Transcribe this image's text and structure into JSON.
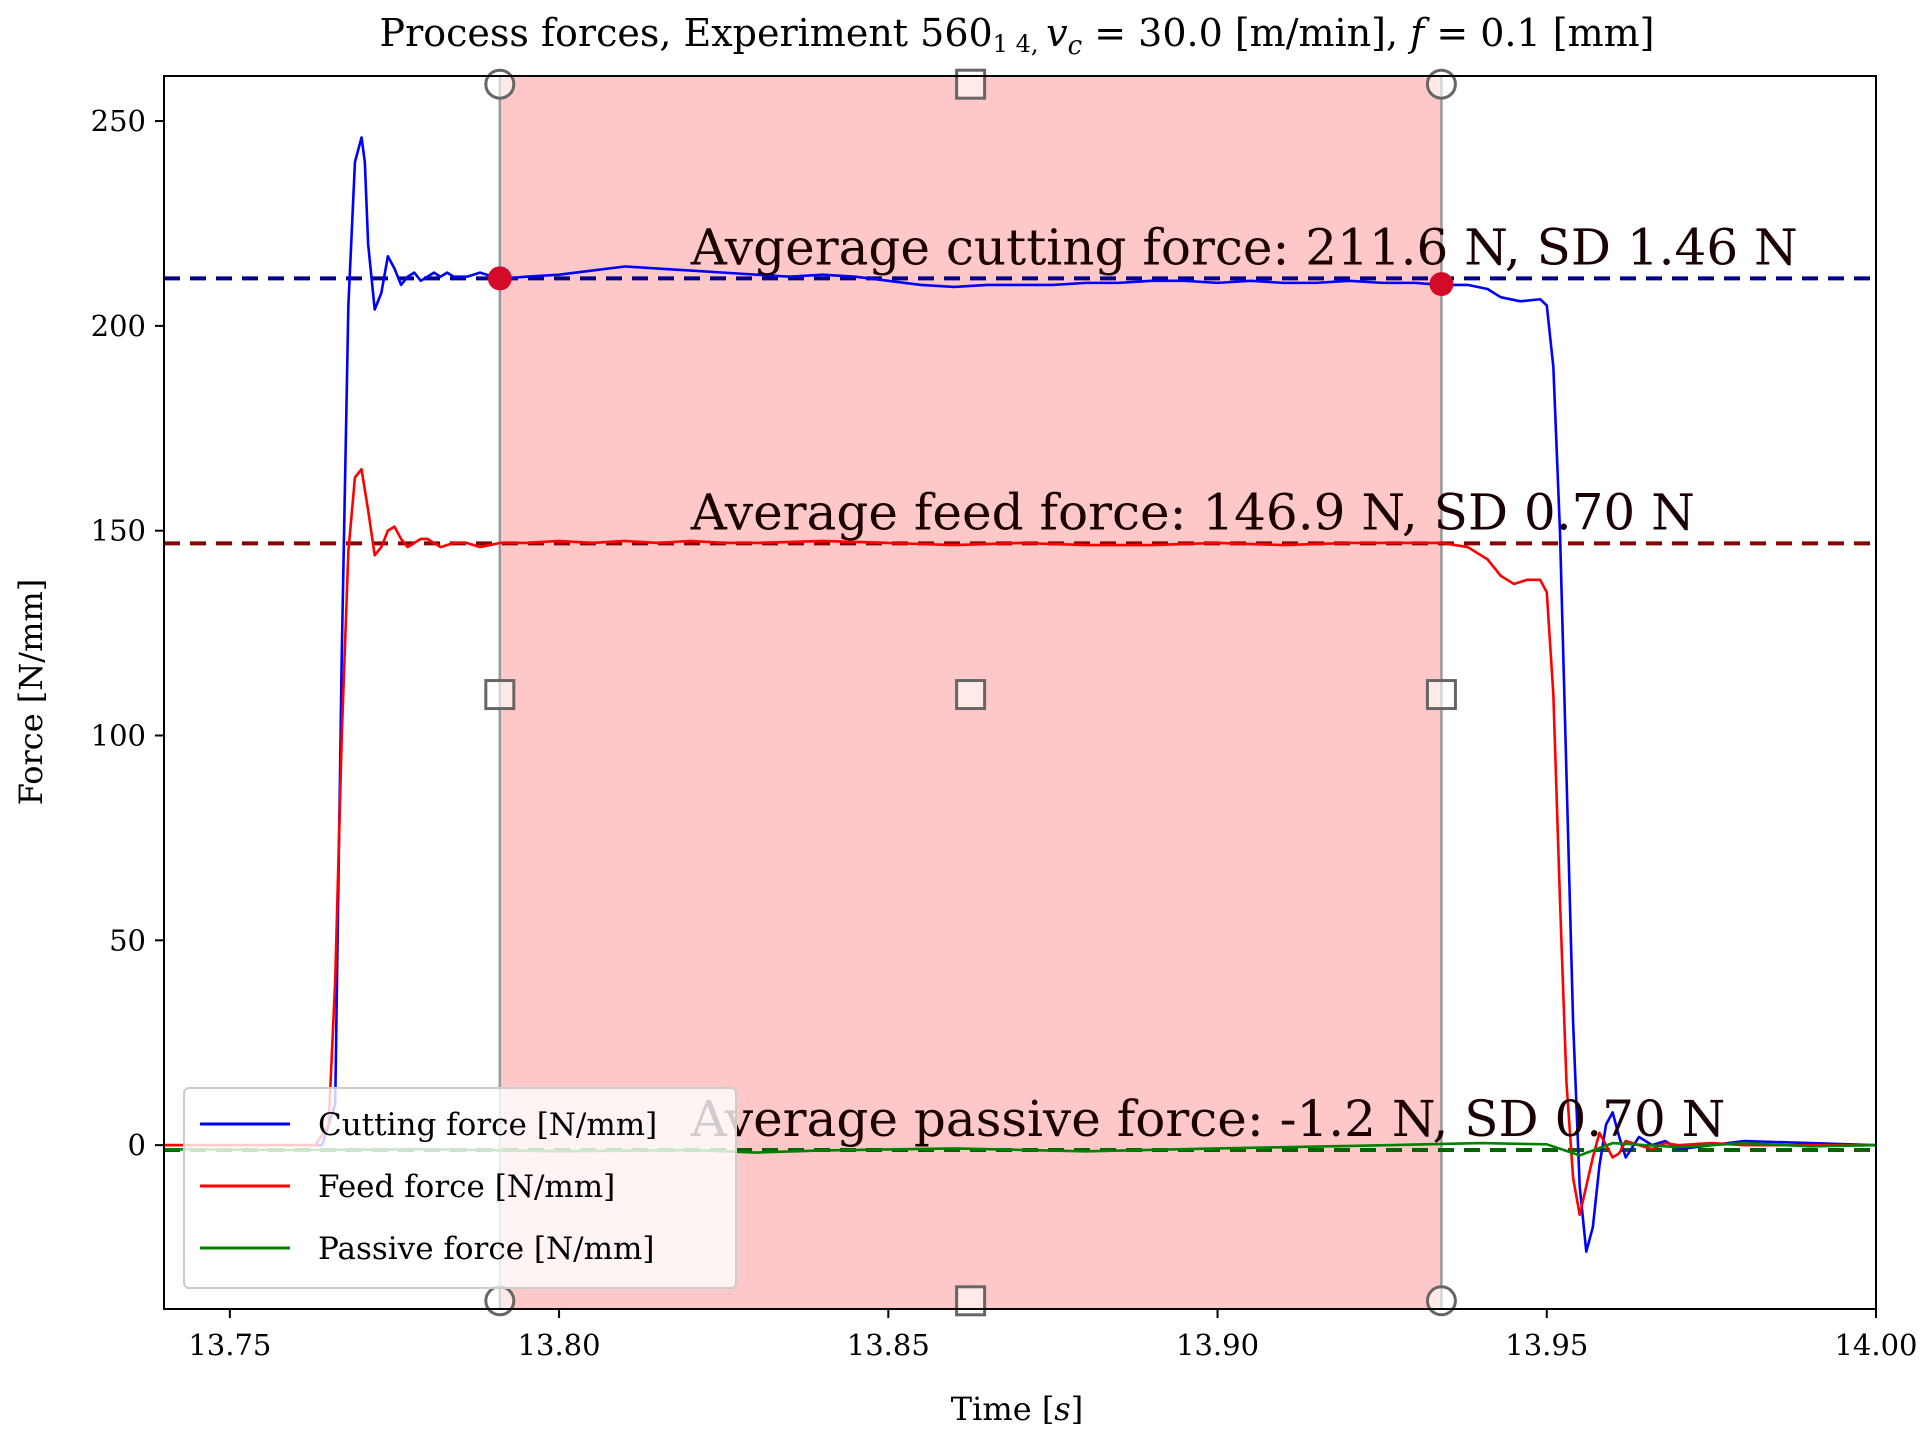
{
  "chart_data": {
    "type": "line",
    "title": "Process forces, Experiment 560_1_4, v_c = 30.0 [m/min], f = 0.1 [mm]",
    "title_parts": {
      "prefix": "Process forces, Experiment 560",
      "sub1": "1",
      "sub2": "4, ",
      "v": "v",
      "c": "c",
      "vc_value": " = 30.0 [m/min], ",
      "f": "f",
      "f_value": " = 0.1 [mm]"
    },
    "xlabel": "Time [s]",
    "xlabel_parts": {
      "prefix": "Time [",
      "s": "s",
      "suffix": "]"
    },
    "ylabel": "Force [N/mm]",
    "xlim": [
      13.74,
      14.0
    ],
    "ylim": [
      -40,
      261
    ],
    "xticks": [
      13.75,
      13.8,
      13.85,
      13.9,
      13.95,
      14.0
    ],
    "xtick_labels": [
      "13.75",
      "13.80",
      "13.85",
      "13.90",
      "13.95",
      "14.00"
    ],
    "yticks": [
      0,
      50,
      100,
      150,
      200,
      250
    ],
    "ytick_labels": [
      "0",
      "50",
      "100",
      "150",
      "200",
      "250"
    ],
    "grid": false,
    "legend_position": "lower-left",
    "selection": {
      "x_start": 13.791,
      "x_end": 13.934,
      "color": "#ff9a9a",
      "markers_y": [
        -38,
        110,
        259
      ]
    },
    "series": [
      {
        "name": "Cutting force [N/mm]",
        "color": "#0000ff",
        "x": [
          13.74,
          13.762,
          13.764,
          13.766,
          13.767,
          13.768,
          13.769,
          13.77,
          13.7705,
          13.771,
          13.772,
          13.773,
          13.774,
          13.775,
          13.776,
          13.777,
          13.778,
          13.779,
          13.78,
          13.781,
          13.782,
          13.783,
          13.784,
          13.786,
          13.788,
          13.791,
          13.795,
          13.8,
          13.805,
          13.81,
          13.815,
          13.82,
          13.825,
          13.83,
          13.835,
          13.84,
          13.845,
          13.85,
          13.855,
          13.86,
          13.865,
          13.87,
          13.875,
          13.88,
          13.885,
          13.89,
          13.895,
          13.9,
          13.905,
          13.91,
          13.915,
          13.92,
          13.925,
          13.93,
          13.934,
          13.938,
          13.941,
          13.943,
          13.946,
          13.949,
          13.95,
          13.951,
          13.952,
          13.953,
          13.954,
          13.955,
          13.956,
          13.957,
          13.958,
          13.959,
          13.96,
          13.961,
          13.962,
          13.964,
          13.966,
          13.968,
          13.97,
          13.975,
          13.98,
          13.99,
          14.0
        ],
        "y": [
          0,
          0,
          0,
          10,
          120,
          205,
          240,
          246,
          240,
          220,
          204,
          208,
          217,
          214,
          210,
          212,
          213,
          211,
          212,
          213,
          212,
          213,
          212,
          212,
          213,
          211.5,
          212,
          212.5,
          213.5,
          214.5,
          214,
          213.5,
          213,
          212.5,
          212,
          212.5,
          212,
          211,
          210,
          209.5,
          210,
          210,
          210,
          210.5,
          210.5,
          211,
          211,
          210.5,
          211,
          210.5,
          210.5,
          211,
          210.5,
          210.5,
          210,
          210,
          209,
          207,
          206,
          206.5,
          205,
          190,
          150,
          90,
          30,
          -10,
          -26,
          -20,
          -5,
          5,
          8,
          2,
          -3,
          2,
          0,
          1,
          -1,
          0,
          1,
          0.5,
          0
        ]
      },
      {
        "name": "Feed force [N/mm]",
        "color": "#ff0000",
        "x": [
          13.74,
          13.763,
          13.765,
          13.766,
          13.767,
          13.768,
          13.769,
          13.77,
          13.771,
          13.772,
          13.773,
          13.774,
          13.775,
          13.776,
          13.777,
          13.778,
          13.779,
          13.78,
          13.782,
          13.784,
          13.786,
          13.788,
          13.791,
          13.795,
          13.8,
          13.805,
          13.81,
          13.815,
          13.82,
          13.825,
          13.83,
          13.84,
          13.85,
          13.86,
          13.87,
          13.88,
          13.89,
          13.9,
          13.91,
          13.92,
          13.93,
          13.934,
          13.938,
          13.941,
          13.943,
          13.945,
          13.947,
          13.949,
          13.95,
          13.951,
          13.952,
          13.953,
          13.954,
          13.955,
          13.956,
          13.957,
          13.958,
          13.959,
          13.96,
          13.961,
          13.962,
          13.964,
          13.966,
          13.968,
          13.97,
          13.975,
          13.98,
          13.99,
          14.0
        ],
        "y": [
          0,
          0,
          5,
          40,
          100,
          145,
          163,
          165,
          155,
          144,
          146,
          150,
          151,
          148,
          146,
          147,
          148,
          148,
          146,
          147,
          147,
          146,
          147,
          147,
          147.5,
          147,
          147.5,
          147,
          147.5,
          147,
          147,
          147.5,
          147,
          146.5,
          147,
          146.5,
          146.5,
          147,
          146.5,
          147,
          147,
          147,
          146,
          143,
          139,
          137,
          138,
          138,
          135,
          110,
          60,
          15,
          -8,
          -17,
          -10,
          -3,
          3,
          0,
          -3,
          -2,
          1,
          0,
          -1,
          0.5,
          0,
          0.5,
          0,
          0,
          0
        ]
      },
      {
        "name": "Passive force [N/mm]",
        "color": "#008000",
        "x": [
          13.74,
          13.76,
          13.78,
          13.8,
          13.82,
          13.83,
          13.84,
          13.86,
          13.88,
          13.9,
          13.92,
          13.94,
          13.95,
          13.955,
          13.96,
          13.97,
          13.98,
          13.99,
          14.0
        ],
        "y": [
          -1,
          -1.2,
          -1.0,
          -1.5,
          -1.2,
          -1.8,
          -1.3,
          -0.8,
          -1.5,
          -0.8,
          -0.2,
          0.5,
          0.2,
          -2.5,
          0.5,
          -0.5,
          0.5,
          -0.3,
          0
        ]
      }
    ],
    "averages": [
      {
        "value": 211.6,
        "color": "#00008b",
        "label": "Avgerage cutting force: 211.6 N, SD 1.46 N"
      },
      {
        "value": 146.9,
        "color": "#8b0000",
        "label": "Average feed force: 146.9 N, SD 0.70 N"
      },
      {
        "value": -1.2,
        "color": "#006400",
        "label": "Average passive force: -1.2 N, SD 0.70 N"
      }
    ],
    "average_points": [
      {
        "x": 13.791,
        "y": 211.6,
        "color": "#d40b28"
      },
      {
        "x": 13.934,
        "y": 210.2,
        "color": "#d40b28"
      }
    ]
  }
}
